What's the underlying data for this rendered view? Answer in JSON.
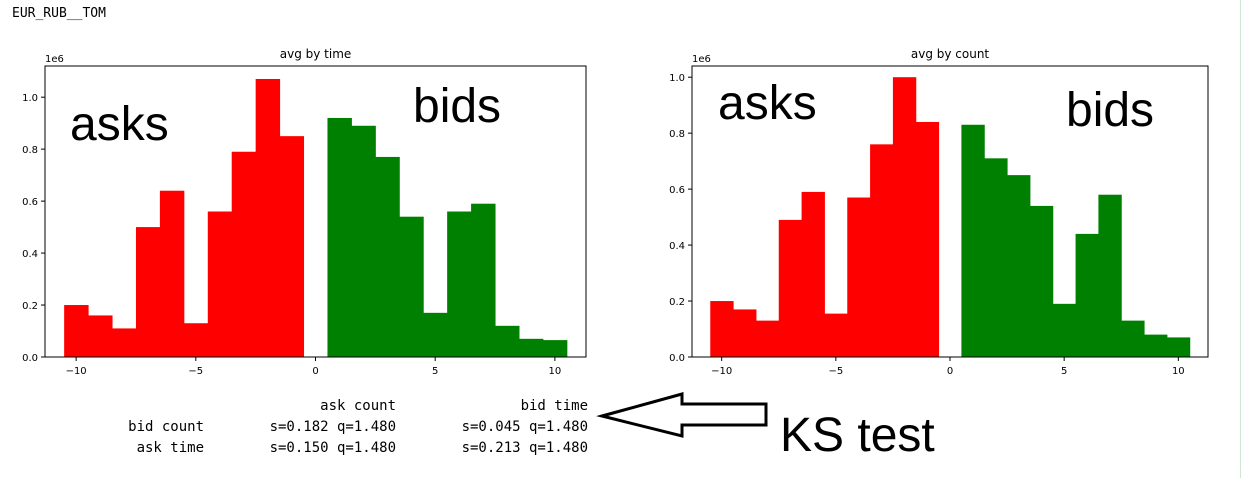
{
  "page_title": "EUR_RUB__TOM",
  "colors": {
    "asks": "#ff0000",
    "bids": "#008000"
  },
  "chart_data": [
    {
      "type": "bar",
      "title": "avg by time",
      "offset_text": "1e6",
      "xlim": [
        -11.3,
        11.3
      ],
      "ylim": [
        0,
        1.12
      ],
      "xticks": [
        -10,
        -5,
        0,
        5,
        10
      ],
      "yticks": [
        0.0,
        0.2,
        0.4,
        0.6,
        0.8,
        1.0
      ],
      "ytick_labels": [
        "0.0",
        "0.2",
        "0.4",
        "0.6",
        "0.8",
        "1.0"
      ],
      "bin_width": 1.0,
      "annotations": [
        "asks",
        "bids"
      ],
      "series": [
        {
          "name": "asks",
          "x": [
            -10,
            -9,
            -8,
            -7,
            -6,
            -5,
            -4,
            -3,
            -2,
            -1
          ],
          "values": [
            0.2,
            0.16,
            0.11,
            0.5,
            0.64,
            0.13,
            0.56,
            0.79,
            1.07,
            0.85
          ]
        },
        {
          "name": "bids",
          "x": [
            1,
            2,
            3,
            4,
            5,
            6,
            7,
            8,
            9,
            10
          ],
          "values": [
            0.92,
            0.89,
            0.77,
            0.54,
            0.17,
            0.56,
            0.59,
            0.12,
            0.07,
            0.065
          ]
        }
      ]
    },
    {
      "type": "bar",
      "title": "avg by count",
      "offset_text": "1e6",
      "xlim": [
        -11.3,
        11.3
      ],
      "ylim": [
        0,
        1.04
      ],
      "xticks": [
        -10,
        -5,
        0,
        5,
        10
      ],
      "yticks": [
        0.0,
        0.2,
        0.4,
        0.6,
        0.8,
        1.0
      ],
      "ytick_labels": [
        "0.0",
        "0.2",
        "0.4",
        "0.6",
        "0.8",
        "1.0"
      ],
      "bin_width": 1.0,
      "annotations": [
        "asks",
        "bids"
      ],
      "series": [
        {
          "name": "asks",
          "x": [
            -10,
            -9,
            -8,
            -7,
            -6,
            -5,
            -4,
            -3,
            -2,
            -1
          ],
          "values": [
            0.2,
            0.17,
            0.13,
            0.49,
            0.59,
            0.155,
            0.57,
            0.76,
            1.0,
            0.84
          ]
        },
        {
          "name": "bids",
          "x": [
            1,
            2,
            3,
            4,
            5,
            6,
            7,
            8,
            9,
            10
          ],
          "values": [
            0.83,
            0.71,
            0.65,
            0.54,
            0.19,
            0.44,
            0.58,
            0.13,
            0.08,
            0.07
          ]
        }
      ]
    }
  ],
  "ks_table": {
    "col_headers": [
      "ask count",
      "bid time"
    ],
    "row_headers": [
      "bid count",
      "ask time"
    ],
    "cells": [
      [
        "s=0.182 q=1.480",
        "s=0.045 q=1.480"
      ],
      [
        "s=0.150 q=1.480",
        "s=0.213 q=1.480"
      ]
    ]
  },
  "ks_caption": "KS test"
}
